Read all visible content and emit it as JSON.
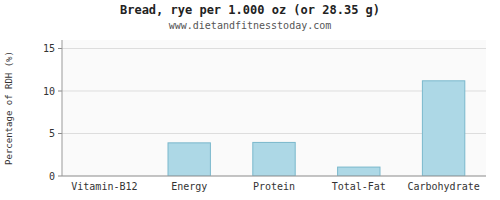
{
  "chart_data": {
    "type": "bar",
    "title": "Bread, rye per 1.000 oz (or 28.35 g)",
    "subtitle": "www.dietandfitnesstoday.com",
    "ylabel": "Percentage of RDH (%)",
    "categories": [
      "Vitamin-B12",
      "Energy",
      "Protein",
      "Total-Fat",
      "Carbohydrate"
    ],
    "values": [
      0,
      3.9,
      3.95,
      1.05,
      11.2
    ],
    "color": "#add8e6",
    "ylim": [
      0,
      16
    ],
    "yticks": [
      0,
      5,
      10,
      15
    ],
    "grid": true
  }
}
